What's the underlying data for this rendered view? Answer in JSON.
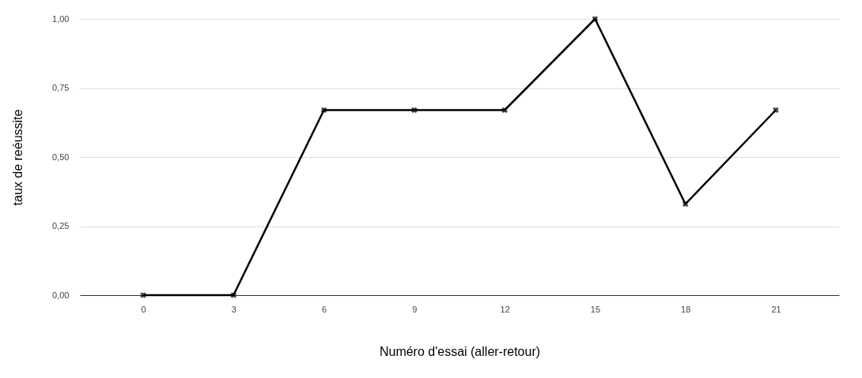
{
  "chart_data": {
    "type": "line",
    "xlabel": "Numéro d'essai (aller-retour)",
    "ylabel": "taux de reéussite",
    "categories": [
      "0",
      "3",
      "6",
      "9",
      "12",
      "15",
      "18",
      "21"
    ],
    "series": [
      {
        "color": "#000000",
        "values": [
          0,
          0,
          0.67,
          0.67,
          0.67,
          1,
          0.33,
          0.67
        ]
      }
    ],
    "ylim": [
      0,
      1
    ],
    "yticks": [
      {
        "value": 0,
        "label": "0,00"
      },
      {
        "value": 0.25,
        "label": "0,25"
      },
      {
        "value": 0.5,
        "label": "0,50"
      },
      {
        "value": 0.75,
        "label": "0,75"
      },
      {
        "value": 1,
        "label": "1,00"
      }
    ],
    "grid": "y",
    "marker": "cross",
    "line_style": "solid"
  }
}
